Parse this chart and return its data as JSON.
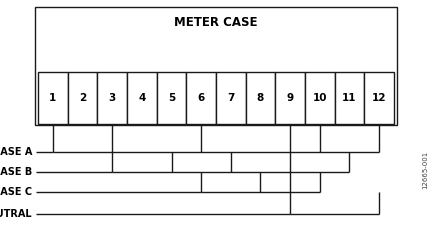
{
  "title": "METER CASE",
  "terminals": [
    "1",
    "2",
    "3",
    "4",
    "5",
    "6",
    "7",
    "8",
    "9",
    "10",
    "11",
    "12"
  ],
  "phase_labels": [
    "PHASE A",
    "PHASE B",
    "PHASE C",
    "NEUTRAL"
  ],
  "bg_color": "#ffffff",
  "line_color": "#1a1a1a",
  "text_color": "#000000",
  "font_size_title": 8.5,
  "font_size_labels": 7.0,
  "font_size_terminals": 7.5,
  "watermark": "12665-001",
  "num_terminals": 12,
  "phase_A_terminals": [
    1,
    3,
    6,
    9,
    10,
    12
  ],
  "phase_B_terminals": [
    3,
    5,
    7,
    9,
    11
  ],
  "phase_C_terminals": [
    6,
    8,
    9,
    10
  ],
  "neutral_terminals": [
    9,
    12
  ]
}
